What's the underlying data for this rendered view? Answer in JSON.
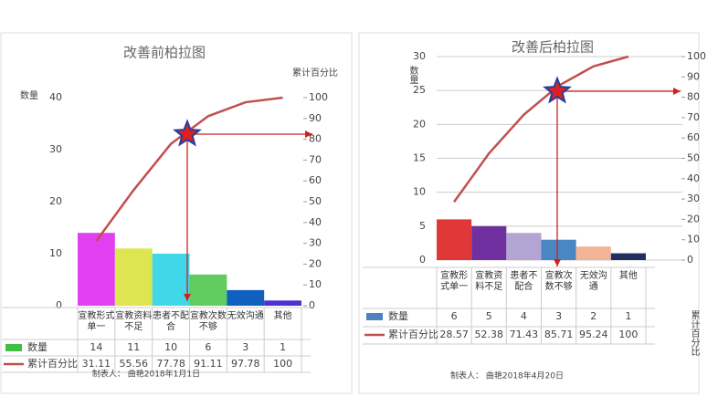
{
  "chart_data": [
    {
      "type": "pareto",
      "title": "改善前柏拉图",
      "y_label": "数量",
      "y2_label": "累计百分比",
      "categories": [
        "宣教形式单一",
        "宣教资料不足",
        "患者不配合",
        "宣教次数不够",
        "无效沟通",
        "其他"
      ],
      "series": [
        {
          "name": "数量",
          "color": "#40c040",
          "colors": [
            "#e040f0",
            "#dde650",
            "#40d8e8",
            "#60cc60",
            "#1060c0",
            "#5030d0"
          ],
          "values": [
            14,
            11,
            10,
            6,
            3,
            1
          ]
        },
        {
          "name": "累计百分比",
          "color": "#c0504d",
          "axis": "y2",
          "values": [
            31.11,
            55.56,
            77.78,
            91.11,
            97.78,
            100
          ]
        }
      ],
      "ylim": [
        0,
        40
      ],
      "yticks": [
        0,
        10,
        20,
        30,
        40
      ],
      "y2lim": [
        0,
        100
      ],
      "y2ticks": [
        0,
        10,
        20,
        30,
        40,
        50,
        60,
        70,
        80,
        90,
        100
      ],
      "grid": false,
      "footer": "制表人： 曲艳2018年1月1日"
    },
    {
      "type": "pareto",
      "title": "改善后柏拉图",
      "y_label": "数量",
      "y2_label": "累计百分比",
      "categories": [
        "宣教形式单一",
        "宣教资料不足",
        "患者不配合",
        "宣教次数不够",
        "无效沟通",
        "其他"
      ],
      "series": [
        {
          "name": "数量",
          "color": "#4f81bd",
          "colors": [
            "#e03838",
            "#7030a0",
            "#b4a4d4",
            "#4a86c4",
            "#f2b496",
            "#1f3060"
          ],
          "values": [
            6,
            5,
            4,
            3,
            2,
            1
          ]
        },
        {
          "name": "累计百分比",
          "color": "#c0504d",
          "axis": "y2",
          "values": [
            28.57,
            52.38,
            71.43,
            85.71,
            95.24,
            100
          ]
        }
      ],
      "ylim": [
        0,
        30
      ],
      "yticks": [
        0,
        5,
        10,
        15,
        20,
        25,
        30
      ],
      "y2lim": [
        0,
        100
      ],
      "y2ticks": [
        0,
        10,
        20,
        30,
        40,
        50,
        60,
        70,
        80,
        90,
        100
      ],
      "grid": true,
      "footer": "制表人： 曲艳2018年4月20日"
    }
  ]
}
